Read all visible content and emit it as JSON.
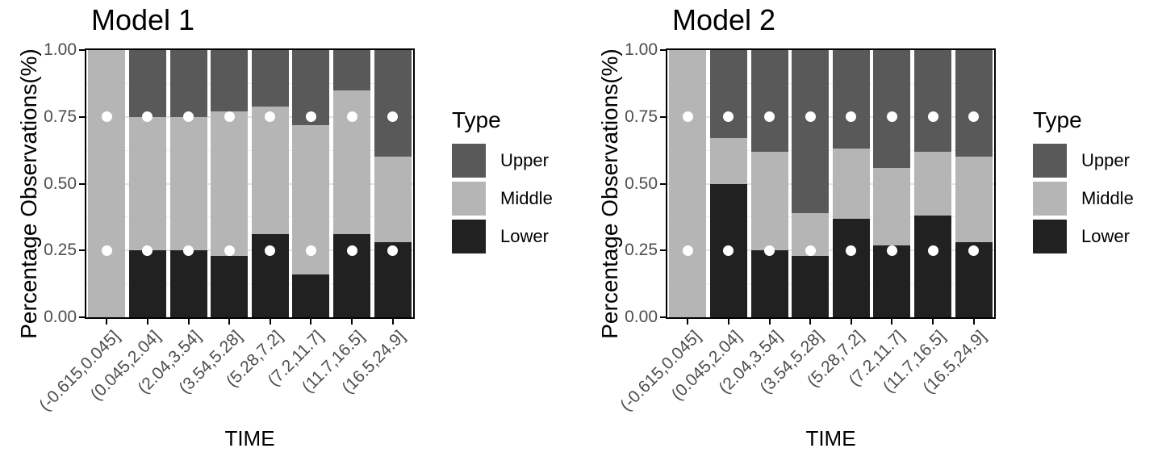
{
  "colors": {
    "background": "#ffffff",
    "panel_border": "#000000",
    "grid_minor": "#ededed",
    "grid_major": "#e4e4e4",
    "tick_label": "#4d4d4d",
    "axis_title": "#000000",
    "reference_dot": "#ffffff",
    "series": {
      "Upper": "#595959",
      "Middle": "#b5b5b5",
      "Lower": "#212121"
    }
  },
  "legend": {
    "title": "Type",
    "entries": [
      {
        "label": "Upper"
      },
      {
        "label": "Middle"
      },
      {
        "label": "Lower"
      }
    ]
  },
  "chart_data": [
    {
      "type": "bar",
      "stacked": true,
      "title": "Model 1",
      "xlabel": "TIME",
      "ylabel": "Percentage Observations(%)",
      "ylim": [
        0,
        1
      ],
      "yticks": [
        0,
        0.25,
        0.5,
        0.75,
        1
      ],
      "ytick_labels": [
        "0.00",
        "0.25",
        "0.50",
        "0.75",
        "1.00"
      ],
      "grid": {
        "minor": [
          0.125,
          0.375,
          0.625,
          0.875
        ],
        "major": [
          0.25,
          0.5,
          0.75
        ]
      },
      "legend_position": "right",
      "categories": [
        "(-0.615,0.045]",
        "(0.045,2.04]",
        "(2.04,3.54]",
        "(3.54,5.28]",
        "(5.28,7.2]",
        "(7.2,11.7]",
        "(11.7,16.5]",
        "(16.5,24.9]"
      ],
      "series": [
        {
          "name": "Lower",
          "values": [
            0.0,
            0.25,
            0.25,
            0.23,
            0.31,
            0.16,
            0.31,
            0.28
          ]
        },
        {
          "name": "Middle",
          "values": [
            1.0,
            0.5,
            0.5,
            0.54,
            0.48,
            0.56,
            0.54,
            0.32
          ]
        },
        {
          "name": "Upper",
          "values": [
            0.0,
            0.25,
            0.25,
            0.23,
            0.21,
            0.28,
            0.15,
            0.4
          ]
        }
      ],
      "point_overlay": {
        "y": [
          0.25,
          0.75
        ],
        "marker": "white-dot"
      }
    },
    {
      "type": "bar",
      "stacked": true,
      "title": "Model 2",
      "xlabel": "TIME",
      "ylabel": "Percentage Observations(%)",
      "ylim": [
        0,
        1
      ],
      "yticks": [
        0,
        0.25,
        0.5,
        0.75,
        1
      ],
      "ytick_labels": [
        "0.00",
        "0.25",
        "0.50",
        "0.75",
        "1.00"
      ],
      "grid": {
        "minor": [
          0.125,
          0.375,
          0.625,
          0.875
        ],
        "major": [
          0.25,
          0.5,
          0.75
        ]
      },
      "legend_position": "right",
      "categories": [
        "(-0.615,0.045]",
        "(0.045,2.04]",
        "(2.04,3.54]",
        "(3.54,5.28]",
        "(5.28,7.2]",
        "(7.2,11.7]",
        "(11.7,16.5]",
        "(16.5,24.9]"
      ],
      "series": [
        {
          "name": "Lower",
          "values": [
            0.0,
            0.5,
            0.25,
            0.23,
            0.37,
            0.27,
            0.38,
            0.28
          ]
        },
        {
          "name": "Middle",
          "values": [
            1.0,
            0.17,
            0.37,
            0.16,
            0.26,
            0.29,
            0.24,
            0.32
          ]
        },
        {
          "name": "Upper",
          "values": [
            0.0,
            0.33,
            0.38,
            0.61,
            0.37,
            0.44,
            0.38,
            0.4
          ]
        }
      ],
      "point_overlay": {
        "y": [
          0.25,
          0.75
        ],
        "marker": "white-dot"
      }
    }
  ]
}
